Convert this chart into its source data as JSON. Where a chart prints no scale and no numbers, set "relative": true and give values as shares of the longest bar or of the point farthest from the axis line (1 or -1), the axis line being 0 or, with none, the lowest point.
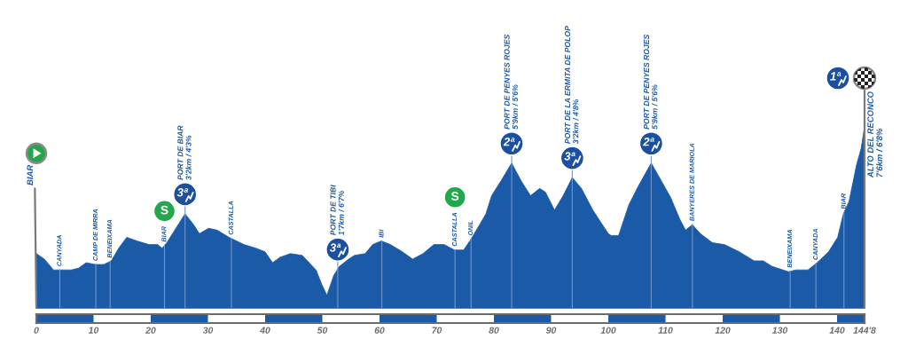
{
  "chart_data": {
    "type": "area",
    "relative": true,
    "xlim": [
      0,
      144.8
    ],
    "xticks": [
      0,
      10,
      20,
      30,
      40,
      50,
      60,
      70,
      80,
      90,
      100,
      110,
      120,
      130,
      140,
      {
        "value": 144.8,
        "label": "144'8"
      }
    ],
    "x": [
      0,
      1.4,
      3.0,
      4.0,
      6.1,
      7.4,
      8.7,
      10.3,
      11.8,
      13.1,
      14.4,
      15.8,
      17.6,
      19.7,
      21.2,
      22.0,
      22.8,
      24.4,
      26.0,
      27.5,
      28.5,
      30.1,
      31.6,
      33.7,
      36.3,
      38.4,
      40.0,
      41.3,
      42.6,
      44.4,
      46.5,
      48.9,
      49.9,
      50.8,
      52.0,
      53.0,
      54.6,
      55.6,
      57.5,
      58.8,
      60.3,
      61.9,
      64.0,
      65.8,
      67.6,
      69.5,
      71.3,
      73.1,
      74.7,
      76.0,
      77.5,
      78.6,
      79.6,
      81.2,
      83.1,
      84.8,
      86.4,
      88.0,
      89.0,
      90.6,
      92.1,
      93.7,
      95.3,
      97.3,
      100.0,
      100.5,
      101.8,
      103.6,
      105.2,
      107.5,
      109.3,
      110.9,
      112.5,
      113.5,
      114.7,
      116.1,
      118.2,
      120.3,
      122.9,
      125.5,
      127.1,
      128.6,
      131.5,
      132.8,
      134.9,
      136.5,
      138.5,
      140.1,
      141.1,
      142.1,
      143.4,
      144.2,
      144.8
    ],
    "series": [
      {
        "color": "#1b5aa7",
        "values": [
          0.3,
          0.27,
          0.21,
          0.21,
          0.21,
          0.22,
          0.25,
          0.24,
          0.24,
          0.26,
          0.33,
          0.39,
          0.37,
          0.35,
          0.35,
          0.33,
          0.36,
          0.44,
          0.52,
          0.46,
          0.41,
          0.44,
          0.43,
          0.39,
          0.35,
          0.33,
          0.31,
          0.25,
          0.28,
          0.3,
          0.29,
          0.21,
          0.13,
          0.07,
          0.18,
          0.23,
          0.27,
          0.29,
          0.3,
          0.35,
          0.37,
          0.35,
          0.31,
          0.27,
          0.3,
          0.35,
          0.35,
          0.32,
          0.32,
          0.38,
          0.46,
          0.52,
          0.62,
          0.7,
          0.8,
          0.7,
          0.62,
          0.66,
          0.64,
          0.54,
          0.62,
          0.72,
          0.66,
          0.54,
          0.41,
          0.4,
          0.4,
          0.57,
          0.67,
          0.8,
          0.7,
          0.61,
          0.49,
          0.43,
          0.46,
          0.41,
          0.36,
          0.35,
          0.31,
          0.26,
          0.26,
          0.23,
          0.2,
          0.21,
          0.21,
          0.25,
          0.31,
          0.39,
          0.52,
          0.59,
          0.79,
          0.88,
          1.0
        ]
      }
    ],
    "annotations": [
      {
        "text": "BIAR",
        "x": 0,
        "y": 0
      },
      {
        "text": "CANYADA",
        "x": 4.1,
        "y": 0
      },
      {
        "text": "CAMP DE MIRRA",
        "x": 10.4,
        "y": 0
      },
      {
        "text": "BENEIXAMA",
        "x": 12.9,
        "y": 0
      },
      "S",
      {
        "text": "BIAR",
        "x": 22.4,
        "y": 0
      },
      "3ª",
      {
        "text": "PORT DE BIAR\n3'2km / 4'3%",
        "x": 26.0,
        "y": 0
      },
      {
        "text": "CASTALLA",
        "x": 34.1,
        "y": 0
      },
      "3ª",
      {
        "text": "PORT DE TIBI\n1'7km / 6'7%",
        "x": 52.7,
        "y": 0
      },
      {
        "text": "IBI",
        "x": 60.4,
        "y": 0
      },
      "S",
      {
        "text": "CASTALLA",
        "x": 73.2,
        "y": 0
      },
      {
        "text": "ONIL",
        "x": 76.0,
        "y": 0
      },
      "2ª",
      {
        "text": "PORT DE PENYES ROJES\n5'9km / 5'6%",
        "x": 83.1,
        "y": 0
      },
      "3ª",
      {
        "text": "PORT DE LA ERMITA DE POLOP\n3'2km / 4'8%",
        "x": 93.7,
        "y": 0
      },
      "2ª",
      {
        "text": "PORT DE PENYES ROJES\n5'9km / 5'6%",
        "x": 107.5,
        "y": 0
      },
      {
        "text": "BANYERES DE MARIOLA",
        "x": 114.7,
        "y": 0
      },
      {
        "text": "BENEIXAMA",
        "x": 131.8,
        "y": 0
      },
      {
        "text": "CANYADA",
        "x": 136.3,
        "y": 0
      },
      {
        "text": "BIAR",
        "x": 141.2,
        "y": 0
      },
      "1ª",
      {
        "text": "ALTO DEL RECONCO\n7'6km / 6'8%",
        "x": 144.8,
        "y": 1.0
      }
    ]
  }
}
